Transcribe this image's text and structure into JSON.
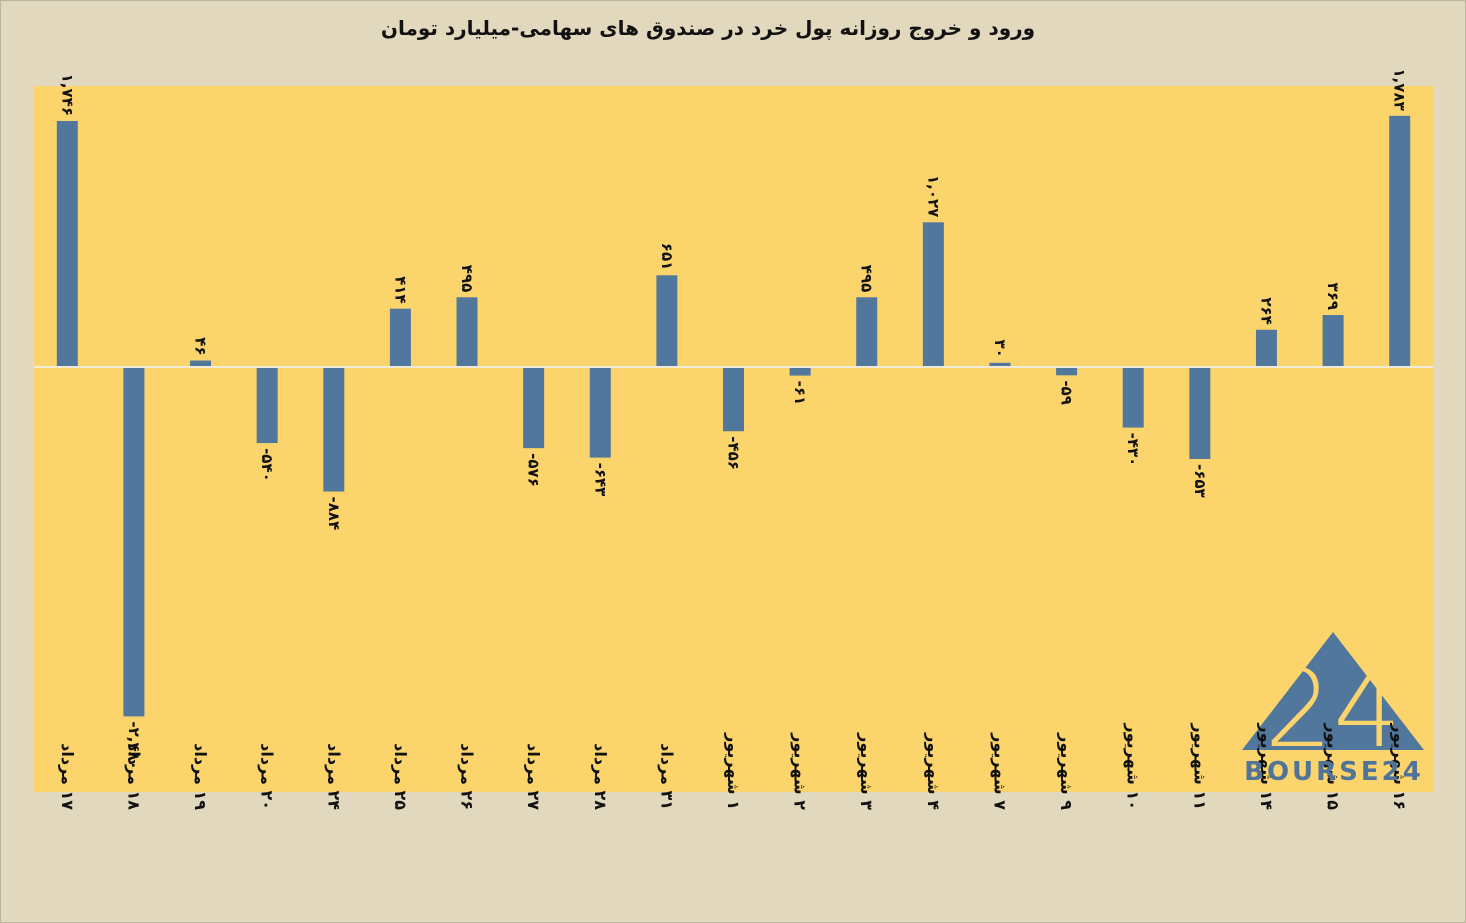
{
  "chart_data": {
    "type": "bar",
    "title": "ورود و خروج روزانه پول خرد در صندوق های سهامی-میلیارد تومان",
    "categories": [
      "۱۷ مرداد",
      "۱۸ مرداد",
      "۱۹ مرداد",
      "۲۰ مرداد",
      "۲۴ مرداد",
      "۲۵ مرداد",
      "۲۶ مرداد",
      "۲۷ مرداد",
      "۲۸ مرداد",
      "۳۱ مرداد",
      "۱ شهریور",
      "۲ شهریور",
      "۳ شهریور",
      "۴ شهریور",
      "۷ شهریور",
      "۹ شهریور",
      "۱۰ شهریور",
      "۱۱ شهریور",
      "۱۴ شهریور",
      "۱۵ شهریور",
      "۱۶ شهریور"
    ],
    "values": [
      1746,
      -2480,
      46,
      -540,
      -884,
      414,
      495,
      -576,
      -643,
      651,
      -456,
      -61,
      495,
      1027,
      30,
      -59,
      -430,
      -653,
      264,
      369,
      1783
    ],
    "value_labels": [
      "۱,۷۴۶",
      "-۲,۴۸۰",
      "۴۶",
      "-۵۴۰",
      "-۸۸۴",
      "۴۱۴",
      "۴۹۵",
      "-۵۷۶",
      "-۶۴۳",
      "۶۵۱",
      "-۴۵۶",
      "-۶۱",
      "۴۹۵",
      "۱,۰۲۷",
      "۳۰",
      "-۵۹",
      "-۴۳۰",
      "-۶۵۳",
      "۲۶۴",
      "۳۶۹",
      "۱,۷۸۳"
    ],
    "ylim": [
      -3000,
      2000
    ],
    "grid": false,
    "legend": "none",
    "colors": {
      "bar": "#52779c",
      "plot_bg": "#fcd46c",
      "page_bg": "#e2d8bd",
      "zero_line": "#f0ead8"
    }
  },
  "logo": {
    "text": "BOURSE24",
    "mark": "24"
  }
}
